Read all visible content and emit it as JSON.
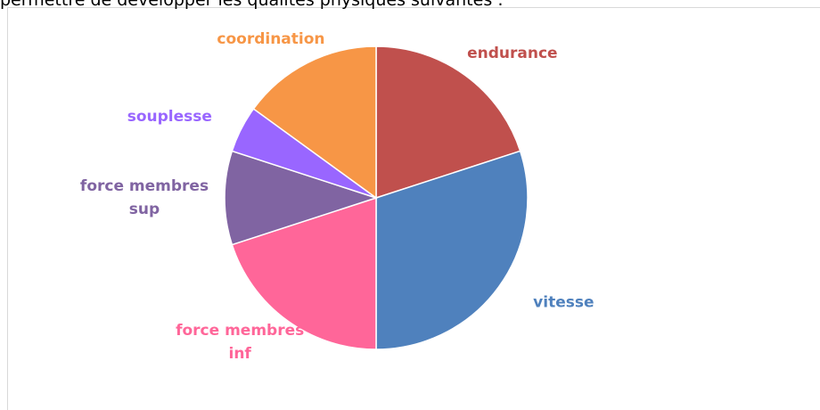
{
  "caption": "permettre de développer les qualités physiques suivantes :",
  "chart_data": {
    "type": "pie",
    "categories": [
      "endurance",
      "vitesse",
      "force membres inf",
      "force membres sup",
      "souplesse",
      "coordination"
    ],
    "values": [
      20,
      30,
      20,
      10,
      5,
      15
    ],
    "colors": [
      "#c0504d",
      "#4f81bd",
      "#ff6699",
      "#8064a2",
      "#9966ff",
      "#f79646"
    ]
  }
}
